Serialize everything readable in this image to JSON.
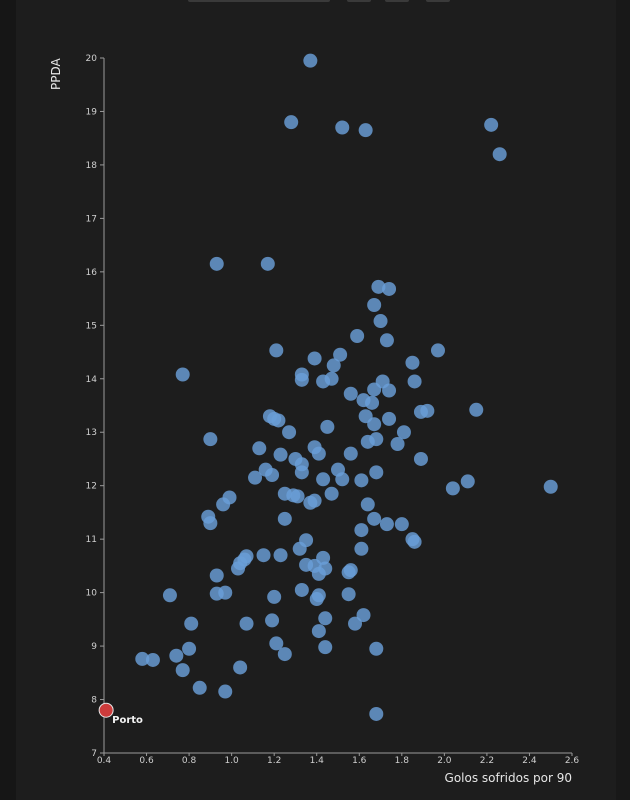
{
  "chart_data": {
    "type": "scatter",
    "title": "",
    "xlabel": "Golos sofridos por 90",
    "ylabel": "PPDA",
    "xlim": [
      0.4,
      2.6
    ],
    "ylim": [
      7,
      20
    ],
    "x_ticks": [
      "0.4",
      "0.6",
      "0.8",
      "1.0",
      "1.2",
      "1.4",
      "1.6",
      "1.8",
      "2.0",
      "2.2",
      "2.4",
      "2.6"
    ],
    "y_ticks": [
      "7",
      "8",
      "9",
      "10",
      "11",
      "12",
      "13",
      "14",
      "15",
      "16",
      "17",
      "18",
      "19",
      "20"
    ],
    "grid": false,
    "point_color": "#6a9fd8",
    "highlight_color": "#cc3b3b",
    "highlight": {
      "label": "Porto",
      "x": 0.41,
      "y": 7.8
    },
    "points": [
      [
        1.37,
        19.95
      ],
      [
        1.28,
        18.8
      ],
      [
        1.52,
        18.7
      ],
      [
        1.63,
        18.65
      ],
      [
        2.22,
        18.75
      ],
      [
        2.26,
        18.2
      ],
      [
        0.93,
        16.15
      ],
      [
        1.17,
        16.15
      ],
      [
        1.69,
        15.72
      ],
      [
        1.74,
        15.68
      ],
      [
        1.67,
        15.38
      ],
      [
        1.7,
        15.08
      ],
      [
        1.59,
        14.8
      ],
      [
        1.73,
        14.72
      ],
      [
        1.21,
        14.53
      ],
      [
        1.97,
        14.53
      ],
      [
        1.51,
        14.45
      ],
      [
        1.39,
        14.38
      ],
      [
        1.85,
        14.3
      ],
      [
        1.48,
        14.25
      ],
      [
        0.77,
        14.08
      ],
      [
        1.33,
        14.08
      ],
      [
        1.33,
        13.98
      ],
      [
        1.43,
        13.95
      ],
      [
        1.47,
        14.0
      ],
      [
        1.71,
        13.95
      ],
      [
        1.86,
        13.95
      ],
      [
        1.67,
        13.8
      ],
      [
        1.74,
        13.78
      ],
      [
        1.56,
        13.72
      ],
      [
        1.62,
        13.6
      ],
      [
        1.66,
        13.55
      ],
      [
        1.92,
        13.4
      ],
      [
        1.89,
        13.38
      ],
      [
        2.15,
        13.42
      ],
      [
        1.18,
        13.3
      ],
      [
        1.2,
        13.25
      ],
      [
        1.22,
        13.22
      ],
      [
        1.63,
        13.3
      ],
      [
        1.74,
        13.25
      ],
      [
        1.67,
        13.15
      ],
      [
        1.45,
        13.1
      ],
      [
        1.27,
        13.0
      ],
      [
        1.81,
        13.0
      ],
      [
        0.9,
        12.87
      ],
      [
        1.68,
        12.87
      ],
      [
        1.64,
        12.82
      ],
      [
        1.78,
        12.78
      ],
      [
        1.39,
        12.72
      ],
      [
        1.13,
        12.7
      ],
      [
        1.23,
        12.58
      ],
      [
        1.41,
        12.6
      ],
      [
        1.56,
        12.6
      ],
      [
        1.3,
        12.5
      ],
      [
        1.33,
        12.4
      ],
      [
        1.89,
        12.5
      ],
      [
        1.16,
        12.3
      ],
      [
        1.5,
        12.3
      ],
      [
        1.68,
        12.25
      ],
      [
        1.19,
        12.2
      ],
      [
        1.33,
        12.25
      ],
      [
        1.11,
        12.15
      ],
      [
        1.43,
        12.12
      ],
      [
        1.52,
        12.12
      ],
      [
        1.61,
        12.1
      ],
      [
        2.11,
        12.08
      ],
      [
        2.04,
        11.95
      ],
      [
        2.5,
        11.98
      ],
      [
        1.25,
        11.85
      ],
      [
        1.29,
        11.82
      ],
      [
        1.31,
        11.8
      ],
      [
        1.47,
        11.85
      ],
      [
        1.39,
        11.72
      ],
      [
        1.37,
        11.68
      ],
      [
        0.99,
        11.78
      ],
      [
        0.96,
        11.65
      ],
      [
        1.64,
        11.65
      ],
      [
        0.89,
        11.42
      ],
      [
        0.9,
        11.3
      ],
      [
        1.25,
        11.38
      ],
      [
        1.67,
        11.38
      ],
      [
        1.73,
        11.28
      ],
      [
        1.8,
        11.28
      ],
      [
        1.61,
        11.17
      ],
      [
        1.85,
        11.0
      ],
      [
        1.86,
        10.95
      ],
      [
        1.35,
        10.98
      ],
      [
        1.32,
        10.82
      ],
      [
        1.61,
        10.82
      ],
      [
        1.15,
        10.7
      ],
      [
        1.23,
        10.7
      ],
      [
        1.07,
        10.68
      ],
      [
        1.06,
        10.62
      ],
      [
        1.04,
        10.55
      ],
      [
        1.43,
        10.65
      ],
      [
        1.35,
        10.52
      ],
      [
        1.39,
        10.5
      ],
      [
        1.44,
        10.45
      ],
      [
        1.41,
        10.35
      ],
      [
        1.03,
        10.45
      ],
      [
        1.55,
        10.38
      ],
      [
        1.56,
        10.42
      ],
      [
        0.93,
        10.32
      ],
      [
        1.33,
        10.05
      ],
      [
        0.97,
        10.0
      ],
      [
        0.93,
        9.98
      ],
      [
        0.71,
        9.95
      ],
      [
        1.2,
        9.92
      ],
      [
        1.4,
        9.88
      ],
      [
        1.41,
        9.95
      ],
      [
        1.55,
        9.97
      ],
      [
        1.62,
        9.58
      ],
      [
        1.44,
        9.52
      ],
      [
        1.19,
        9.48
      ],
      [
        1.07,
        9.42
      ],
      [
        0.81,
        9.42
      ],
      [
        1.58,
        9.42
      ],
      [
        1.41,
        9.28
      ],
      [
        1.21,
        9.05
      ],
      [
        1.44,
        8.98
      ],
      [
        1.68,
        8.95
      ],
      [
        0.8,
        8.95
      ],
      [
        1.25,
        8.85
      ],
      [
        0.74,
        8.82
      ],
      [
        0.58,
        8.76
      ],
      [
        0.63,
        8.74
      ],
      [
        1.04,
        8.6
      ],
      [
        0.77,
        8.55
      ],
      [
        0.85,
        8.22
      ],
      [
        0.97,
        8.15
      ],
      [
        1.68,
        7.73
      ]
    ]
  }
}
